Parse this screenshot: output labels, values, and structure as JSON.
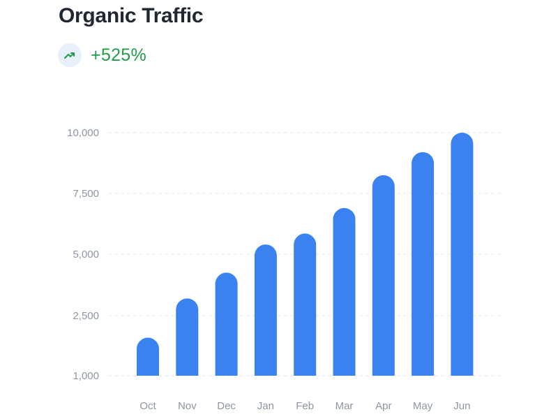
{
  "header": {
    "title": "Organic Traffic",
    "trend_value": "+525%",
    "trend_icon": "trending-up-icon",
    "trend_color": "#1f9e47"
  },
  "chart_data": {
    "type": "bar",
    "categories": [
      "Oct",
      "Nov",
      "Dec",
      "Jan",
      "Feb",
      "Mar",
      "Apr",
      "May",
      "Jun"
    ],
    "values": [
      1950,
      3200,
      4250,
      5400,
      5850,
      6900,
      8250,
      9200,
      10000
    ],
    "ylim": [
      1000,
      10000
    ],
    "yticks": [
      {
        "value": 1000,
        "label": "1,000"
      },
      {
        "value": 2500,
        "label": "2,500"
      },
      {
        "value": 5000,
        "label": "5,000"
      },
      {
        "value": 7500,
        "label": "7,500"
      },
      {
        "value": 10000,
        "label": "10,000"
      }
    ],
    "bar_color": "#3b82f0",
    "grid": true,
    "legend": "none"
  }
}
